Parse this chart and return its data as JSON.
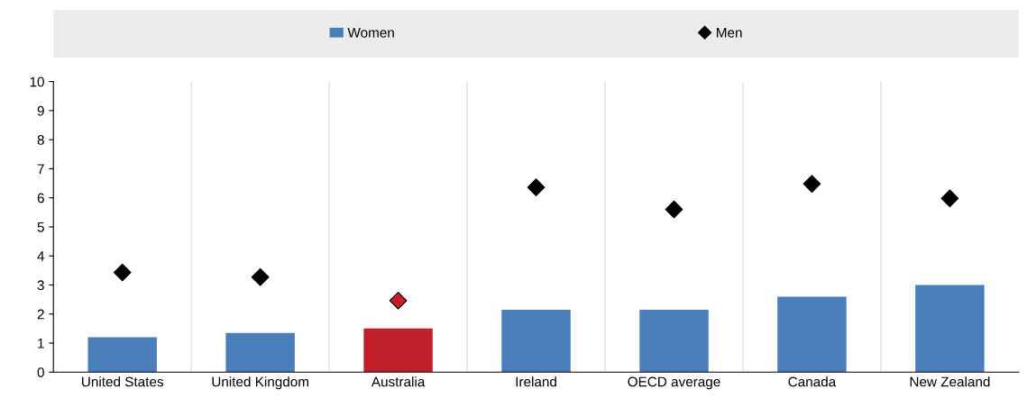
{
  "chart_data": {
    "type": "bar",
    "categories": [
      "United States",
      "United Kingdom",
      "Australia",
      "Ireland",
      "OECD average",
      "Canada",
      "New Zealand"
    ],
    "series": [
      {
        "name": "Women",
        "color": "#4a7ebb",
        "colors": [
          "#4a7ebb",
          "#4a7ebb",
          "#c0202a",
          "#4a7ebb",
          "#4a7ebb",
          "#4a7ebb",
          "#4a7ebb"
        ],
        "values": [
          1.2,
          1.35,
          1.5,
          2.15,
          2.15,
          2.6,
          3.0
        ]
      },
      {
        "name": "Men",
        "type": "scatter",
        "color": "#000000",
        "colors": [
          "#000000",
          "#000000",
          "#c0202a",
          "#000000",
          "#000000",
          "#000000",
          "#000000"
        ],
        "marker": "diamond",
        "values": [
          3.43,
          3.27,
          2.46,
          6.36,
          5.6,
          6.48,
          5.98
        ]
      }
    ],
    "ylim": [
      0,
      10
    ],
    "yticks": [
      0,
      1,
      2,
      3,
      4,
      5,
      6,
      7,
      8,
      9,
      10
    ],
    "grid": "x",
    "legend": "top"
  }
}
